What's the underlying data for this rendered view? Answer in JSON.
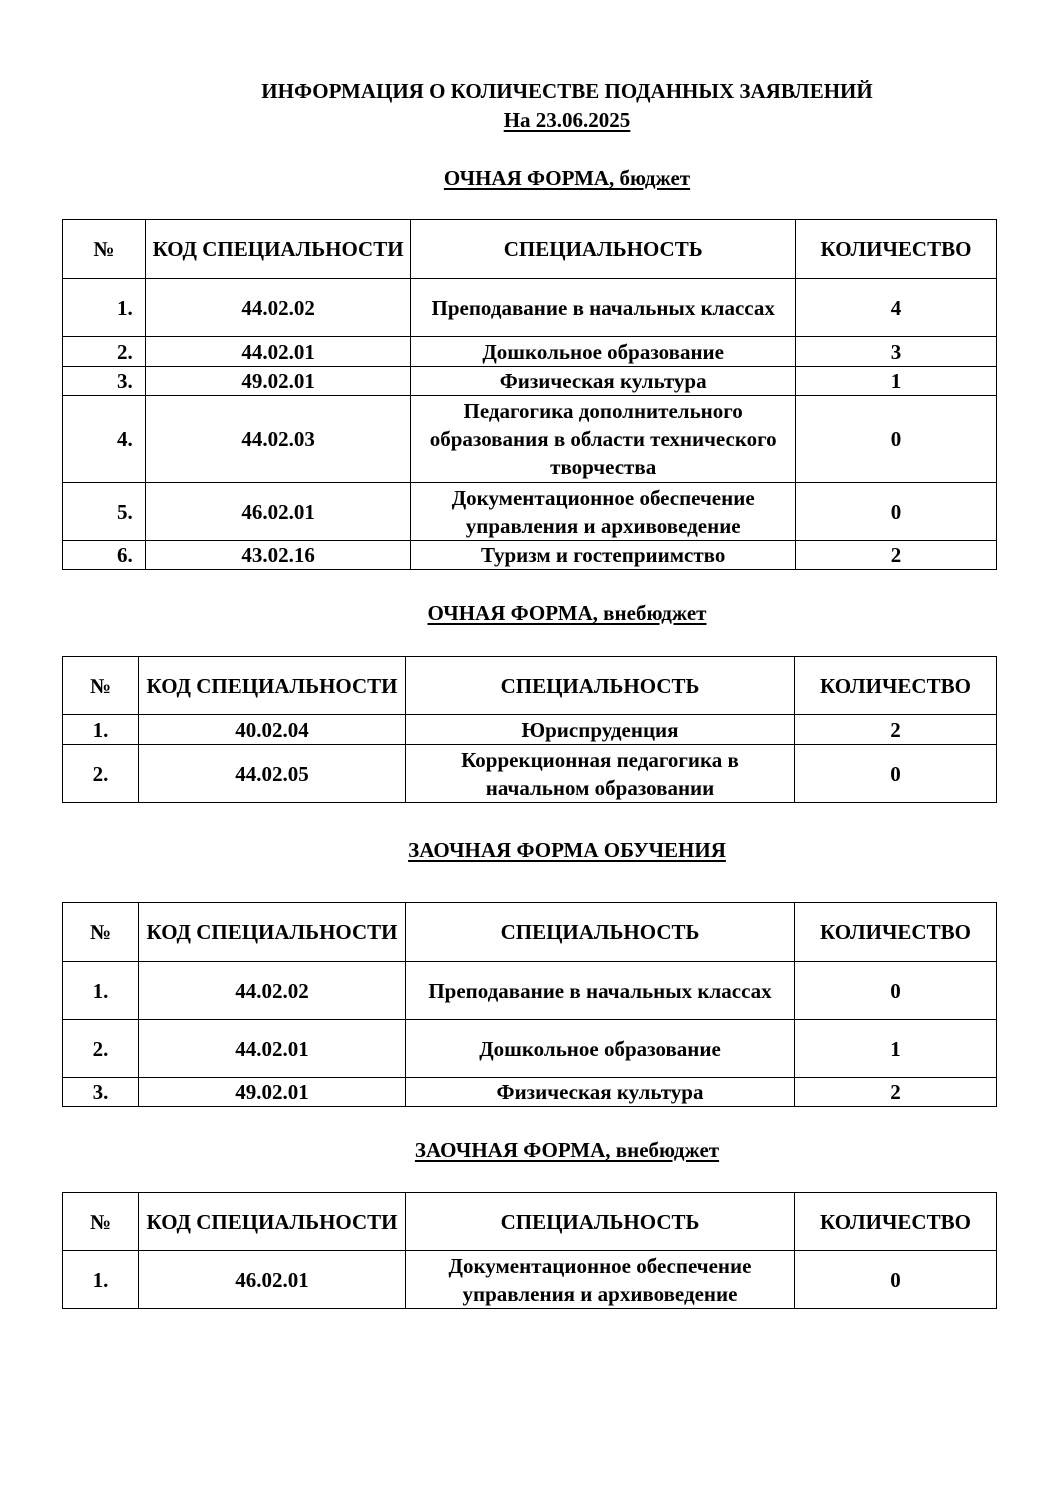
{
  "title": "ИНФОРМАЦИЯ О КОЛИЧЕСТВЕ ПОДАННЫХ ЗАЯВЛЕНИЙ",
  "date": "На 23.06.2025",
  "headers": [
    "№",
    "КОД СПЕЦИАЛЬНОСТИ",
    "СПЕЦИАЛЬНОСТЬ",
    "КОЛИЧЕСТВО"
  ],
  "sections": [
    {
      "heading": "ОЧНАЯ ФОРМА, бюджет",
      "rows": [
        [
          "1.",
          "44.02.02",
          "Преподавание в начальных классах",
          "4"
        ],
        [
          "2.",
          "44.02.01",
          "Дошкольное образование",
          "3"
        ],
        [
          "3.",
          "49.02.01",
          "Физическая культура",
          "1"
        ],
        [
          "4.",
          "44.02.03",
          "Педагогика дополнительного образования в области технического творчества",
          "0"
        ],
        [
          "5.",
          "46.02.01",
          "Документационное обеспечение управления и архивоведение",
          "0"
        ],
        [
          "6.",
          "43.02.16",
          "Туризм и гостеприимство",
          "2"
        ]
      ]
    },
    {
      "heading": "ОЧНАЯ ФОРМА, внебюджет",
      "rows": [
        [
          "1.",
          "40.02.04",
          "Юриспруденция",
          "2"
        ],
        [
          "2.",
          "44.02.05",
          "Коррекционная педагогика в начальном образовании",
          "0"
        ]
      ]
    },
    {
      "heading": "ЗАОЧНАЯ ФОРМА ОБУЧЕНИЯ",
      "rows": [
        [
          "1.",
          "44.02.02",
          "Преподавание в начальных классах",
          "0"
        ],
        [
          "2.",
          "44.02.01",
          "Дошкольное образование",
          "1"
        ],
        [
          "3.",
          "49.02.01",
          "Физическая культура",
          "2"
        ]
      ]
    },
    {
      "heading": "ЗАОЧНАЯ ФОРМА, внебюджет",
      "rows": [
        [
          "1.",
          "46.02.01",
          "Документационное обеспечение управления и архивоведение",
          "0"
        ]
      ]
    }
  ]
}
